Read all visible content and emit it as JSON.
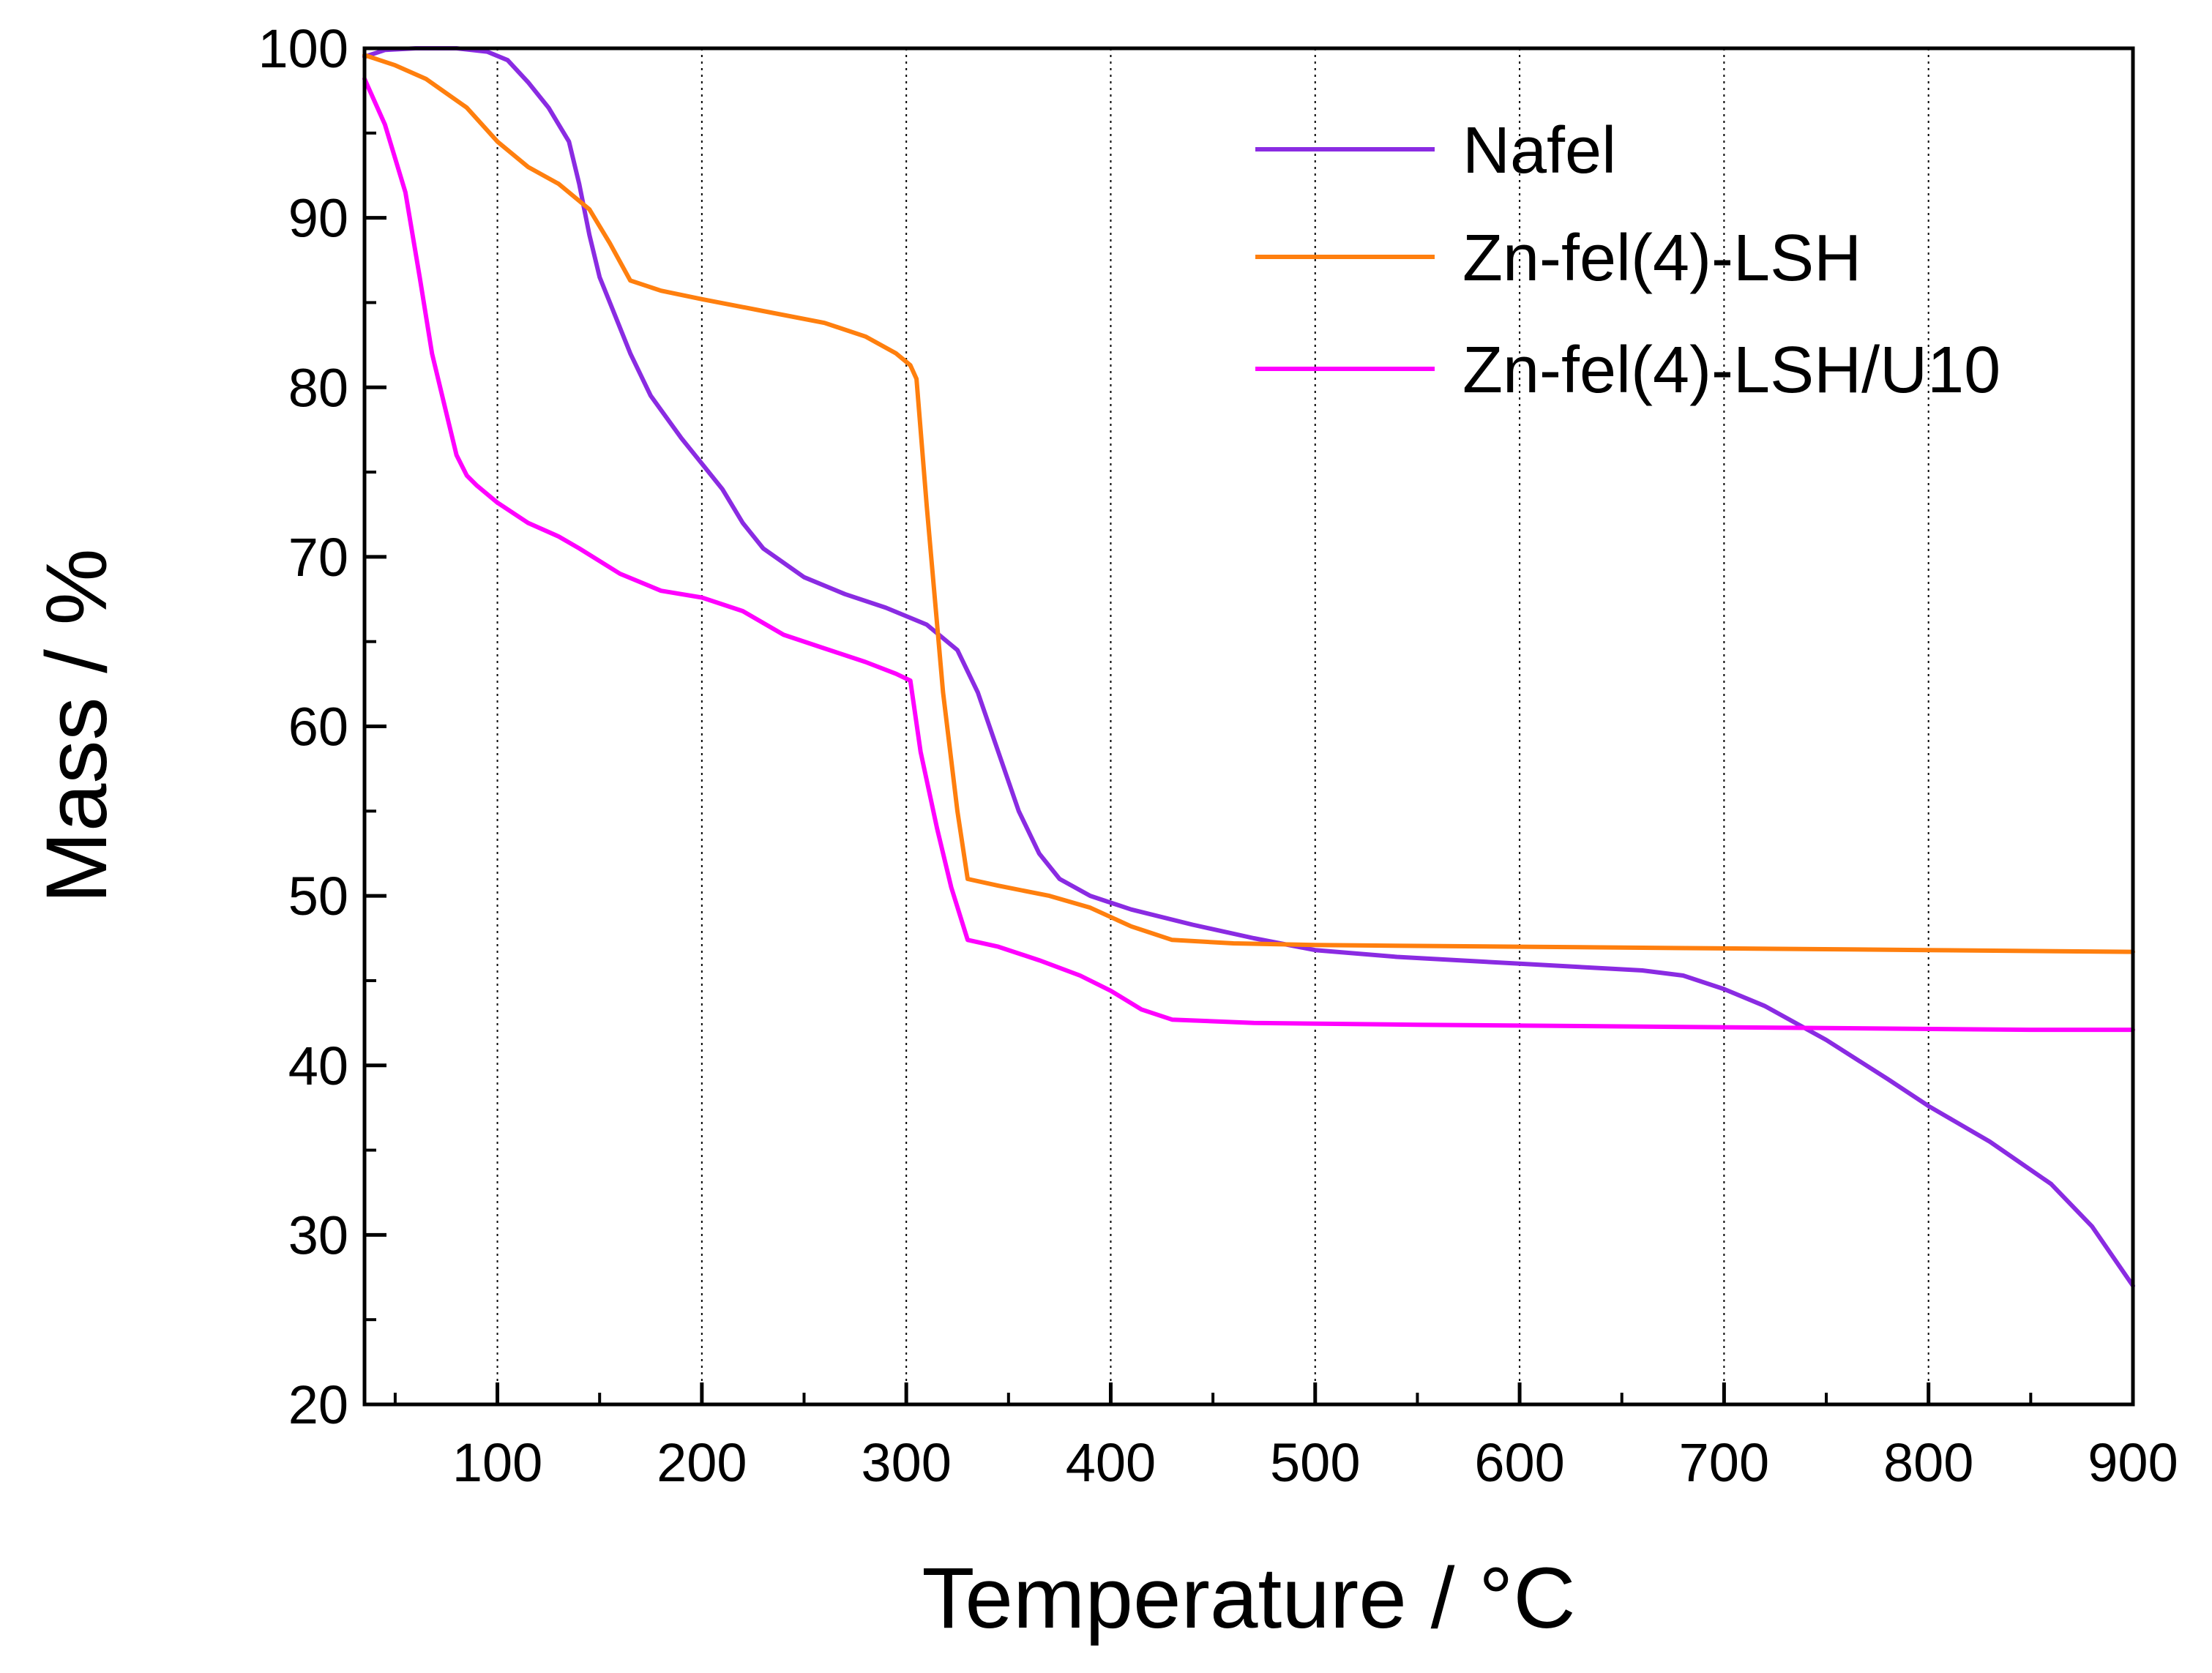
{
  "chart_data": {
    "type": "line",
    "title": "",
    "xlabel": "Temperature / °C",
    "ylabel": "Mass / %",
    "xlim": [
      35,
      900
    ],
    "ylim": [
      20,
      100
    ],
    "x_ticks": [
      100,
      200,
      300,
      400,
      500,
      600,
      700,
      800,
      900
    ],
    "y_ticks": [
      20,
      30,
      40,
      50,
      60,
      70,
      80,
      90,
      100
    ],
    "x_tick_labels": [
      "100",
      "200",
      "300",
      "400",
      "500",
      "600",
      "700",
      "800",
      "900"
    ],
    "y_tick_labels": [
      "20",
      "30",
      "40",
      "50",
      "60",
      "70",
      "80",
      "90",
      "100"
    ],
    "grid": "vertical dotted lines at major x ticks",
    "legend_position": "top-right",
    "series": [
      {
        "name": "Nafel",
        "color": "#8a2be2",
        "x": [
          35,
          45,
          60,
          80,
          95,
          105,
          115,
          125,
          135,
          140,
          145,
          150,
          155,
          165,
          175,
          190,
          210,
          220,
          230,
          250,
          270,
          290,
          310,
          325,
          335,
          345,
          355,
          365,
          375,
          390,
          410,
          440,
          470,
          500,
          540,
          600,
          660,
          680,
          700,
          720,
          750,
          780,
          800,
          830,
          860,
          880,
          900
        ],
        "y": [
          99.5,
          99.9,
          100,
          100,
          99.8,
          99.3,
          98,
          96.5,
          94.5,
          92,
          89,
          86.5,
          85,
          82,
          79.5,
          77,
          74,
          72,
          70.5,
          68.8,
          67.8,
          67,
          66,
          64.5,
          62,
          58.5,
          55,
          52.5,
          51,
          50,
          49.2,
          48.3,
          47.5,
          46.8,
          46.4,
          46,
          45.6,
          45.3,
          44.5,
          43.5,
          41.5,
          39.2,
          37.6,
          35.5,
          33,
          30.5,
          27
        ]
      },
      {
        "name": "Zn-fel(4)-LSH",
        "color": "#ff7f0e",
        "x": [
          35,
          50,
          65,
          85,
          100,
          115,
          130,
          145,
          155,
          165,
          180,
          200,
          230,
          260,
          280,
          295,
          302,
          305,
          310,
          318,
          325,
          330,
          345,
          370,
          390,
          410,
          430,
          460,
          500,
          600,
          700,
          800,
          900
        ],
        "y": [
          99.6,
          99,
          98.2,
          96.5,
          94.5,
          93,
          92,
          90.5,
          88.5,
          86.3,
          85.7,
          85.2,
          84.5,
          83.8,
          83,
          82,
          81.3,
          80.5,
          73,
          62,
          55,
          51,
          50.6,
          50,
          49.3,
          48.2,
          47.4,
          47.2,
          47.1,
          47,
          46.9,
          46.8,
          46.7
        ]
      },
      {
        "name": "Zn-fel(4)-LSH/U10",
        "color": "#ff00ff",
        "x": [
          35,
          45,
          55,
          62,
          68,
          75,
          80,
          85,
          90,
          100,
          115,
          130,
          140,
          160,
          180,
          200,
          220,
          240,
          260,
          280,
          295,
          302,
          307,
          315,
          322,
          330,
          345,
          365,
          385,
          400,
          415,
          430,
          470,
          550,
          650,
          750,
          850,
          900
        ],
        "y": [
          98.2,
          95.5,
          91.5,
          86.5,
          82,
          78.5,
          76,
          74.8,
          74.2,
          73.2,
          72,
          71.2,
          70.5,
          69,
          68,
          67.6,
          66.8,
          65.4,
          64.6,
          63.8,
          63.1,
          62.7,
          58.5,
          54,
          50.5,
          47.4,
          47,
          46.2,
          45.3,
          44.4,
          43.3,
          42.7,
          42.5,
          42.4,
          42.3,
          42.2,
          42.1,
          42.1
        ]
      }
    ]
  }
}
